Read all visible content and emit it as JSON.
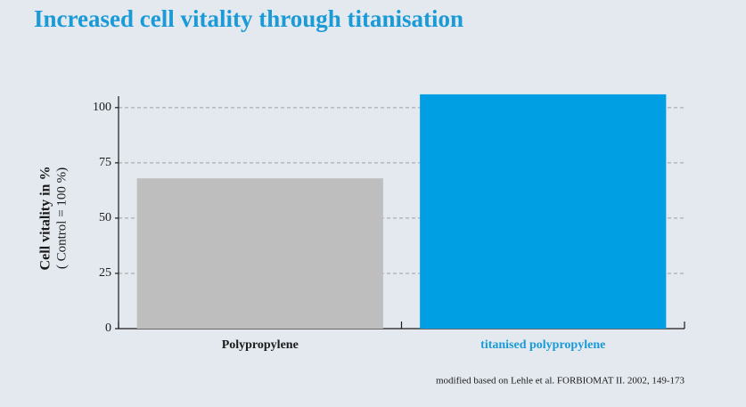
{
  "chart_data": {
    "type": "bar",
    "title": "Increased cell vitality through titanisation",
    "y_label": "Cell vitality in %",
    "y_sublabel": "( Control = 100 %)",
    "categories": [
      "Polypropylene",
      "titanised polypropylene"
    ],
    "values": [
      68,
      106
    ],
    "colors": [
      "#bebebe",
      "#009fe3"
    ],
    "category_label_colors": [
      "#1a1a1a",
      "#1a9ad6"
    ],
    "ylim": [
      0,
      110
    ],
    "yticks": [
      0,
      25,
      50,
      75,
      100
    ],
    "grid": true,
    "source": "modified based on Lehle et al. FORBIOMAT II. 2002, 149-173"
  }
}
